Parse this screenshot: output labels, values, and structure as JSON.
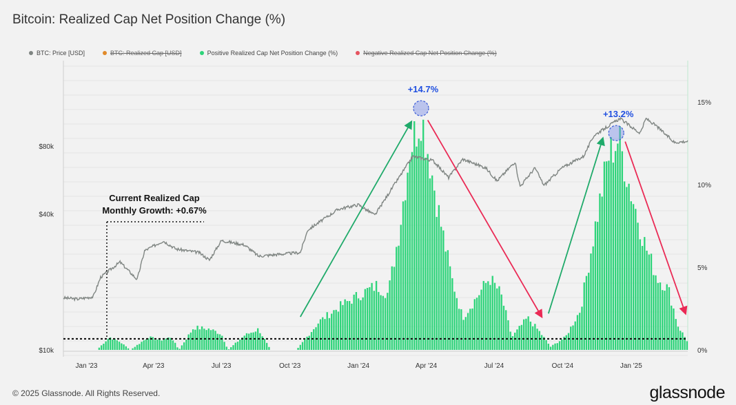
{
  "title": "Bitcoin: Realized Cap Net Position Change (%)",
  "legend": [
    {
      "label": "BTC: Price [USD]",
      "color": "#7f8582",
      "active": true
    },
    {
      "label": "BTC: Realized Cap [USD]",
      "color": "#e08a2a",
      "active": false
    },
    {
      "label": "Positive Realized Cap Net Position Change (%)",
      "color": "#2ed47a",
      "active": true
    },
    {
      "label": "Negative Realized Cap Net Position Change (%)",
      "color": "#e5535f",
      "active": false
    }
  ],
  "annotations": {
    "peak1": "+14.7%",
    "peak2": "+13.2%",
    "current_line1": "Current Realized Cap",
    "current_line2": "Monthly Growth: +0.67%"
  },
  "footer": "© 2025 Glassnode. All Rights Reserved.",
  "brand": "glassnode",
  "chart_data": {
    "type": "bar",
    "x_ticks": [
      "Jan '23",
      "Apr '23",
      "Jul '23",
      "Oct '23",
      "Jan '24",
      "Apr '24",
      "Jul '24",
      "Oct '24",
      "Jan '25"
    ],
    "x_range": [
      "2022-12-01",
      "2025-03-18"
    ],
    "y_left": {
      "scale": "log",
      "ticks": [
        "$10k",
        "$40k",
        "$80k"
      ],
      "tick_values": [
        10000,
        40000,
        80000
      ]
    },
    "y_right": {
      "ticks": [
        "0%",
        "5%",
        "10%",
        "15%"
      ],
      "tick_values": [
        0,
        5,
        10,
        15
      ],
      "range": [
        0,
        17.5
      ]
    },
    "reference_line_pct": 0.67,
    "series": [
      {
        "name": "BTC: Price [USD]",
        "axis": "left",
        "color": "#7f8582",
        "points": [
          [
            "2022-12-01",
            17000
          ],
          [
            "2022-12-20",
            16800
          ],
          [
            "2023-01-10",
            17200
          ],
          [
            "2023-01-20",
            21000
          ],
          [
            "2023-02-15",
            24500
          ],
          [
            "2023-03-10",
            20500
          ],
          [
            "2023-03-20",
            27500
          ],
          [
            "2023-04-14",
            30400
          ],
          [
            "2023-05-01",
            28000
          ],
          [
            "2023-06-01",
            27000
          ],
          [
            "2023-06-15",
            25000
          ],
          [
            "2023-07-01",
            30500
          ],
          [
            "2023-08-01",
            29200
          ],
          [
            "2023-08-20",
            26000
          ],
          [
            "2023-09-15",
            26500
          ],
          [
            "2023-10-15",
            27000
          ],
          [
            "2023-10-25",
            34000
          ],
          [
            "2023-12-05",
            42000
          ],
          [
            "2024-01-01",
            44000
          ],
          [
            "2024-01-23",
            39500
          ],
          [
            "2024-02-15",
            52000
          ],
          [
            "2024-03-14",
            72000
          ],
          [
            "2024-04-10",
            69000
          ],
          [
            "2024-05-01",
            58000
          ],
          [
            "2024-05-20",
            70000
          ],
          [
            "2024-06-20",
            64000
          ],
          [
            "2024-07-05",
            56000
          ],
          [
            "2024-07-29",
            68000
          ],
          [
            "2024-08-05",
            53000
          ],
          [
            "2024-08-25",
            64000
          ],
          [
            "2024-09-06",
            53500
          ],
          [
            "2024-09-30",
            64000
          ],
          [
            "2024-10-29",
            72000
          ],
          [
            "2024-11-12",
            89000
          ],
          [
            "2024-12-17",
            106000
          ],
          [
            "2025-01-13",
            91000
          ],
          [
            "2025-01-21",
            106000
          ],
          [
            "2025-02-04",
            98000
          ],
          [
            "2025-02-28",
            83000
          ],
          [
            "2025-03-18",
            84000
          ]
        ]
      },
      {
        "name": "Positive Realized Cap Net Position Change (%)",
        "axis": "right",
        "color": "#2ed47a",
        "points": [
          [
            "2022-12-01",
            0
          ],
          [
            "2023-01-15",
            0
          ],
          [
            "2023-02-01",
            0.8
          ],
          [
            "2023-02-15",
            0.5
          ],
          [
            "2023-03-01",
            0
          ],
          [
            "2023-03-25",
            0.8
          ],
          [
            "2023-04-10",
            0.6
          ],
          [
            "2023-04-25",
            0.8
          ],
          [
            "2023-05-05",
            0
          ],
          [
            "2023-05-25",
            1.4
          ],
          [
            "2023-06-15",
            1.3
          ],
          [
            "2023-07-01",
            1.0
          ],
          [
            "2023-07-10",
            0
          ],
          [
            "2023-08-01",
            0.9
          ],
          [
            "2023-08-20",
            1.3
          ],
          [
            "2023-09-05",
            0
          ],
          [
            "2023-10-10",
            0
          ],
          [
            "2023-11-10",
            1.8
          ],
          [
            "2023-12-10",
            2.8
          ],
          [
            "2024-01-05",
            3.5
          ],
          [
            "2024-01-25",
            4.0
          ],
          [
            "2024-02-10",
            3.5
          ],
          [
            "2024-02-25",
            7.5
          ],
          [
            "2024-03-10",
            12.5
          ],
          [
            "2024-03-25",
            14.7
          ],
          [
            "2024-04-05",
            12.0
          ],
          [
            "2024-04-20",
            8.0
          ],
          [
            "2024-05-05",
            4.5
          ],
          [
            "2024-05-20",
            2.0
          ],
          [
            "2024-06-08",
            3.3
          ],
          [
            "2024-06-25",
            4.5
          ],
          [
            "2024-07-10",
            3.5
          ],
          [
            "2024-07-25",
            0.8
          ],
          [
            "2024-08-15",
            2.0
          ],
          [
            "2024-08-30",
            1.2
          ],
          [
            "2024-09-15",
            0.2
          ],
          [
            "2024-10-05",
            0.8
          ],
          [
            "2024-10-25",
            2.5
          ],
          [
            "2024-11-15",
            8.0
          ],
          [
            "2024-12-01",
            12.0
          ],
          [
            "2024-12-15",
            13.2
          ],
          [
            "2024-12-31",
            10.0
          ],
          [
            "2025-01-20",
            6.5
          ],
          [
            "2025-02-05",
            4.5
          ],
          [
            "2025-02-20",
            3.8
          ],
          [
            "2025-03-05",
            1.5
          ],
          [
            "2025-03-18",
            0.5
          ]
        ]
      }
    ]
  }
}
